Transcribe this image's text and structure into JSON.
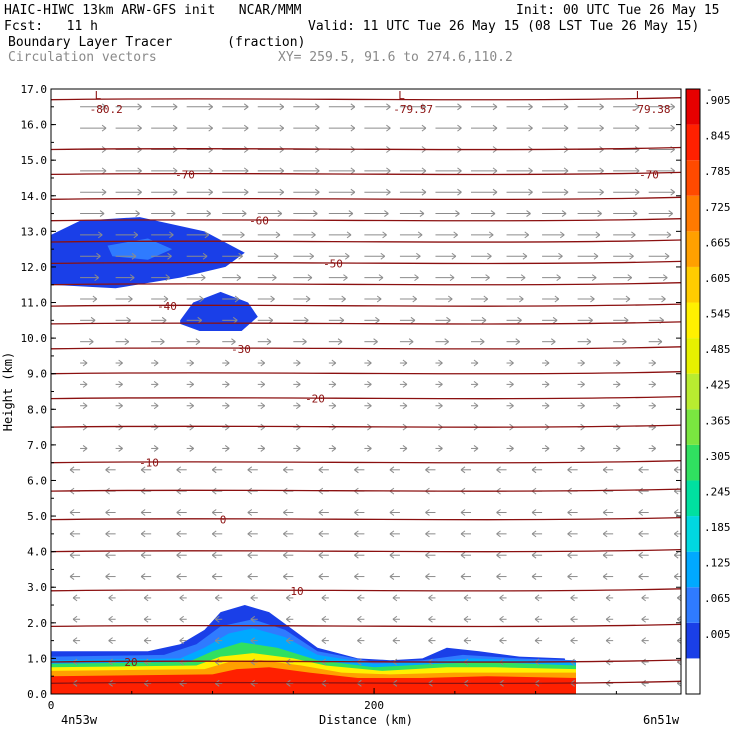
{
  "header": {
    "model_line": "HAIC-HIWC 13km ARW-GFS init   NCAR/MMM",
    "init_line": "Init: 00 UTC Tue 26 May 15",
    "fcst_line": "Fcst:   11 h",
    "valid_line": "Valid: 11 UTC Tue 26 May 15 (08 LST Tue 26 May 15)",
    "field_line": "Boundary Layer Tracer       (fraction)",
    "vector_line": "Circulation vectors",
    "xy_line": "XY= 259.5, 91.6 to 274.6,110.2"
  },
  "chart_data": {
    "type": "heatmap",
    "xlabel": "Distance (km)",
    "ylabel": "Height (km)",
    "xlim": [
      0,
      390
    ],
    "ylim": [
      0,
      17
    ],
    "x_ticks": [
      {
        "value": 0,
        "label": "0"
      },
      {
        "value": 200,
        "label": "200"
      }
    ],
    "x_end_labels": {
      "left": "4n53w",
      "right": "6n51w"
    },
    "y_ticks": [
      {
        "value": 0,
        "label": "0.0"
      },
      {
        "value": 1,
        "label": "1.0"
      },
      {
        "value": 2,
        "label": "2.0"
      },
      {
        "value": 3,
        "label": "3.0"
      },
      {
        "value": 4,
        "label": "4.0"
      },
      {
        "value": 5,
        "label": "5.0"
      },
      {
        "value": 6,
        "label": "6.0"
      },
      {
        "value": 7,
        "label": "7.0"
      },
      {
        "value": 8,
        "label": "8.0"
      },
      {
        "value": 9,
        "label": "9.0"
      },
      {
        "value": 10,
        "label": "10.0"
      },
      {
        "value": 11,
        "label": "11.0"
      },
      {
        "value": 12,
        "label": "12.0"
      },
      {
        "value": 13,
        "label": "13.0"
      },
      {
        "value": 14,
        "label": "14.0"
      },
      {
        "value": 15,
        "label": "15.0"
      },
      {
        "value": 16,
        "label": "16.0"
      },
      {
        "value": 17,
        "label": "17.0"
      }
    ],
    "colorbar": {
      "labels": [
        ".005",
        ".065",
        ".125",
        ".185",
        ".245",
        ".305",
        ".365",
        ".425",
        ".485",
        ".545",
        ".605",
        ".665",
        ".725",
        ".785",
        ".845",
        ".905"
      ],
      "colors": [
        "#ffffff",
        "#1a3fe8",
        "#2f7bff",
        "#00a9ff",
        "#00d8e0",
        "#00e0a0",
        "#30e060",
        "#7ae640",
        "#b8ec30",
        "#e6f000",
        "#fff000",
        "#ffcc00",
        "#ffa000",
        "#ff7a00",
        "#ff4a00",
        "#ff2000",
        "#e60000"
      ]
    },
    "isotherms": [
      {
        "height": 16.7,
        "label": null
      },
      {
        "height": 15.3,
        "label": null
      },
      {
        "height": 14.6,
        "label": "-70"
      },
      {
        "height": 13.9,
        "label": null
      },
      {
        "height": 13.3,
        "label": "-60"
      },
      {
        "height": 12.7,
        "label": null
      },
      {
        "height": 12.1,
        "label": "-50"
      },
      {
        "height": 11.5,
        "label": null
      },
      {
        "height": 10.9,
        "label": "-40"
      },
      {
        "height": 10.4,
        "label": null
      },
      {
        "height": 9.7,
        "label": "-30"
      },
      {
        "height": 9.0,
        "label": null
      },
      {
        "height": 8.3,
        "label": "-20"
      },
      {
        "height": 7.5,
        "label": null
      },
      {
        "height": 6.5,
        "label": "-10"
      },
      {
        "height": 5.7,
        "label": null
      },
      {
        "height": 4.9,
        "label": "0"
      },
      {
        "height": 4.0,
        "label": null
      },
      {
        "height": 2.9,
        "label": "10"
      },
      {
        "height": 1.9,
        "label": null
      },
      {
        "height": 0.9,
        "label": "20"
      },
      {
        "height": 0.3,
        "label": null
      }
    ],
    "extrema": [
      {
        "x": 27,
        "y": 16.6,
        "letter": "L",
        "value": "-80.2"
      },
      {
        "x": 215,
        "y": 16.6,
        "letter": "L",
        "value": "-79.57"
      },
      {
        "x": 362,
        "y": 16.6,
        "letter": "L",
        "value": "-79.38"
      }
    ],
    "plumes": [
      {
        "name": "upper-plume-1",
        "level": 1,
        "points": [
          [
            0,
            12.9
          ],
          [
            18,
            13.3
          ],
          [
            55,
            13.4
          ],
          [
            95,
            13.0
          ],
          [
            120,
            12.4
          ],
          [
            108,
            12.0
          ],
          [
            80,
            11.7
          ],
          [
            40,
            11.4
          ],
          [
            0,
            11.5
          ]
        ]
      },
      {
        "name": "upper-plume-1-core",
        "level": 2,
        "points": [
          [
            35,
            12.6
          ],
          [
            60,
            12.8
          ],
          [
            75,
            12.5
          ],
          [
            60,
            12.2
          ],
          [
            38,
            12.3
          ]
        ]
      },
      {
        "name": "upper-plume-2",
        "level": 1,
        "points": [
          [
            80,
            10.5
          ],
          [
            88,
            11.0
          ],
          [
            105,
            11.3
          ],
          [
            122,
            11.0
          ],
          [
            128,
            10.6
          ],
          [
            118,
            10.2
          ],
          [
            92,
            10.2
          ],
          [
            80,
            10.4
          ]
        ]
      },
      {
        "name": "bl-blue",
        "level": 1,
        "points": [
          [
            0,
            1.2
          ],
          [
            60,
            1.2
          ],
          [
            80,
            1.4
          ],
          [
            95,
            1.8
          ],
          [
            105,
            2.3
          ],
          [
            120,
            2.5
          ],
          [
            135,
            2.3
          ],
          [
            150,
            1.8
          ],
          [
            165,
            1.3
          ],
          [
            190,
            1.0
          ],
          [
            210,
            0.95
          ],
          [
            230,
            1.0
          ],
          [
            245,
            1.3
          ],
          [
            265,
            1.2
          ],
          [
            290,
            1.05
          ],
          [
            318,
            1.0
          ],
          [
            325,
            0
          ],
          [
            0,
            0
          ]
        ]
      },
      {
        "name": "bl-lightblue",
        "level": 2,
        "points": [
          [
            0,
            1.05
          ],
          [
            70,
            1.1
          ],
          [
            90,
            1.4
          ],
          [
            105,
            1.9
          ],
          [
            125,
            2.1
          ],
          [
            145,
            1.8
          ],
          [
            165,
            1.2
          ],
          [
            200,
            0.9
          ],
          [
            230,
            0.95
          ],
          [
            255,
            1.1
          ],
          [
            290,
            1.0
          ],
          [
            325,
            0.95
          ],
          [
            325,
            0
          ],
          [
            0,
            0
          ]
        ]
      },
      {
        "name": "bl-cyan",
        "level": 3,
        "points": [
          [
            0,
            0.95
          ],
          [
            80,
            1.0
          ],
          [
            95,
            1.3
          ],
          [
            110,
            1.7
          ],
          [
            125,
            1.85
          ],
          [
            145,
            1.6
          ],
          [
            165,
            1.1
          ],
          [
            200,
            0.85
          ],
          [
            230,
            0.9
          ],
          [
            260,
            1.0
          ],
          [
            325,
            0.9
          ],
          [
            325,
            0
          ],
          [
            0,
            0
          ]
        ]
      },
      {
        "name": "bl-green",
        "level": 6,
        "points": [
          [
            0,
            0.85
          ],
          [
            85,
            0.9
          ],
          [
            100,
            1.2
          ],
          [
            118,
            1.45
          ],
          [
            140,
            1.3
          ],
          [
            165,
            0.95
          ],
          [
            200,
            0.75
          ],
          [
            240,
            0.85
          ],
          [
            270,
            0.9
          ],
          [
            325,
            0.8
          ],
          [
            325,
            0
          ],
          [
            0,
            0
          ]
        ]
      },
      {
        "name": "bl-yellow",
        "level": 10,
        "points": [
          [
            0,
            0.75
          ],
          [
            90,
            0.8
          ],
          [
            105,
            1.05
          ],
          [
            125,
            1.15
          ],
          [
            150,
            1.0
          ],
          [
            170,
            0.8
          ],
          [
            205,
            0.65
          ],
          [
            245,
            0.75
          ],
          [
            275,
            0.75
          ],
          [
            325,
            0.7
          ],
          [
            325,
            0
          ],
          [
            0,
            0
          ]
        ]
      },
      {
        "name": "bl-orange",
        "level": 12,
        "points": [
          [
            0,
            0.65
          ],
          [
            95,
            0.7
          ],
          [
            110,
            0.9
          ],
          [
            130,
            0.95
          ],
          [
            155,
            0.8
          ],
          [
            180,
            0.6
          ],
          [
            210,
            0.55
          ],
          [
            250,
            0.6
          ],
          [
            280,
            0.6
          ],
          [
            325,
            0.6
          ],
          [
            325,
            0
          ],
          [
            0,
            0
          ]
        ]
      },
      {
        "name": "bl-red",
        "level": 15,
        "points": [
          [
            0,
            0.5
          ],
          [
            100,
            0.55
          ],
          [
            115,
            0.7
          ],
          [
            135,
            0.75
          ],
          [
            160,
            0.6
          ],
          [
            190,
            0.45
          ],
          [
            230,
            0.45
          ],
          [
            270,
            0.5
          ],
          [
            325,
            0.45
          ],
          [
            325,
            0
          ],
          [
            0,
            0
          ]
        ]
      }
    ]
  }
}
